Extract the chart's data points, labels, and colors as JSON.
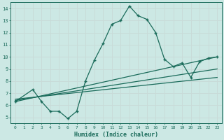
{
  "xlabel": "Humidex (Indice chaleur)",
  "ylabel": "",
  "xlim": [
    -0.5,
    23.5
  ],
  "ylim": [
    4.5,
    14.5
  ],
  "xticks": [
    0,
    1,
    2,
    3,
    4,
    5,
    6,
    7,
    8,
    9,
    10,
    11,
    12,
    13,
    14,
    15,
    16,
    17,
    18,
    19,
    20,
    21,
    22,
    23
  ],
  "yticks": [
    5,
    6,
    7,
    8,
    9,
    10,
    11,
    12,
    13,
    14
  ],
  "bg_color": "#cce8e4",
  "line_color": "#1a6b5a",
  "grid_color": "#c8dbd8",
  "main_x": [
    0,
    2,
    3,
    4,
    5,
    6,
    7,
    8,
    9,
    10,
    11,
    12,
    13,
    14,
    15,
    16,
    17,
    18,
    19,
    20,
    21,
    22,
    23
  ],
  "main_y": [
    6.3,
    7.3,
    6.3,
    5.5,
    5.5,
    4.9,
    5.5,
    8.0,
    9.7,
    11.1,
    12.7,
    13.0,
    14.2,
    13.4,
    13.1,
    12.0,
    9.8,
    9.2,
    9.5,
    8.3,
    9.6,
    9.9,
    10.0
  ],
  "line1_x": [
    0,
    23
  ],
  "line1_y": [
    6.3,
    10.0
  ],
  "line2_x": [
    0,
    23
  ],
  "line2_y": [
    6.4,
    9.0
  ],
  "line3_x": [
    0,
    23
  ],
  "line3_y": [
    6.5,
    8.3
  ]
}
